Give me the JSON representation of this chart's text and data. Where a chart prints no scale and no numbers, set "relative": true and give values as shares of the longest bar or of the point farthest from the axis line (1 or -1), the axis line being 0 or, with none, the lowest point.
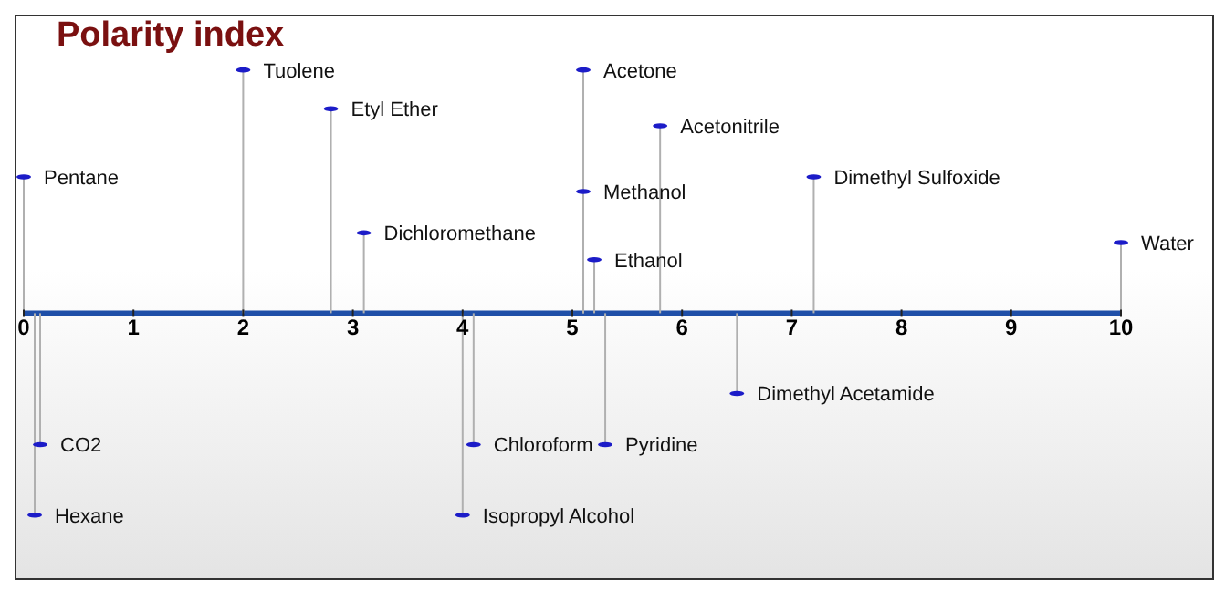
{
  "chart_data": {
    "type": "lollipop",
    "title": "Polarity index",
    "relative": true,
    "color": "#1c1cc8",
    "xlim": [
      0,
      10
    ],
    "xticks": [
      0,
      1,
      2,
      3,
      4,
      5,
      6,
      7,
      8,
      9,
      10
    ],
    "x": [
      0,
      0.1,
      0.15,
      2.0,
      2.8,
      3.1,
      4.0,
      4.1,
      5.1,
      5.1,
      5.2,
      5.3,
      5.8,
      6.5,
      7.2,
      10.0
    ],
    "values": [
      0.56,
      -0.83,
      -0.54,
      1,
      0.84,
      0.33,
      -0.83,
      -0.54,
      1,
      0.5,
      0.22,
      -0.54,
      0.77,
      -0.33,
      0.56,
      0.29
    ],
    "annotations": [
      {
        "text": "Pentane",
        "x": 0,
        "y": 0.56
      },
      {
        "text": "Hexane",
        "x": 0.1,
        "y": -0.83
      },
      {
        "text": "CO2",
        "x": 0.15,
        "y": -0.54
      },
      {
        "text": "Tuolene",
        "x": 2.0,
        "y": 1
      },
      {
        "text": "Etyl Ether",
        "x": 2.8,
        "y": 0.84
      },
      {
        "text": "Dichloromethane",
        "x": 3.1,
        "y": 0.33
      },
      {
        "text": "Isopropyl Alcohol",
        "x": 4.0,
        "y": -0.83
      },
      {
        "text": "Chloroform",
        "x": 4.1,
        "y": -0.54
      },
      {
        "text": "Acetone",
        "x": 5.1,
        "y": 1
      },
      {
        "text": "Methanol",
        "x": 5.1,
        "y": 0.5
      },
      {
        "text": "Ethanol",
        "x": 5.2,
        "y": 0.22
      },
      {
        "text": "Pyridine",
        "x": 5.3,
        "y": -0.54
      },
      {
        "text": "Acetonitrile",
        "x": 5.8,
        "y": 0.77
      },
      {
        "text": "Dimethyl Acetamide",
        "x": 6.5,
        "y": -0.33
      },
      {
        "text": "Dimethyl Sulfoxide",
        "x": 7.2,
        "y": 0.56
      },
      {
        "text": "Water",
        "x": 10.0,
        "y": 0.29
      }
    ]
  }
}
